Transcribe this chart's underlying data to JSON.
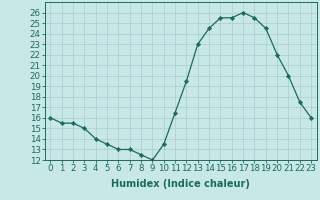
{
  "x": [
    0,
    1,
    2,
    3,
    4,
    5,
    6,
    7,
    8,
    9,
    10,
    11,
    12,
    13,
    14,
    15,
    16,
    17,
    18,
    19,
    20,
    21,
    22,
    23
  ],
  "y": [
    16.0,
    15.5,
    15.5,
    15.0,
    14.0,
    13.5,
    13.0,
    13.0,
    12.5,
    12.0,
    13.5,
    16.5,
    19.5,
    23.0,
    24.5,
    25.5,
    25.5,
    26.0,
    25.5,
    24.5,
    22.0,
    20.0,
    17.5,
    16.0
  ],
  "xlabel": "Humidex (Indice chaleur)",
  "ylim": [
    12,
    27
  ],
  "yticks": [
    12,
    13,
    14,
    15,
    16,
    17,
    18,
    19,
    20,
    21,
    22,
    23,
    24,
    25,
    26
  ],
  "xticks": [
    0,
    1,
    2,
    3,
    4,
    5,
    6,
    7,
    8,
    9,
    10,
    11,
    12,
    13,
    14,
    15,
    16,
    17,
    18,
    19,
    20,
    21,
    22,
    23
  ],
  "line_color": "#1a6b5a",
  "marker_color": "#1a6b5a",
  "bg_color": "#c8e8e8",
  "grid_color": "#aacccc",
  "axis_fontsize": 7.0,
  "tick_fontsize": 6.2
}
